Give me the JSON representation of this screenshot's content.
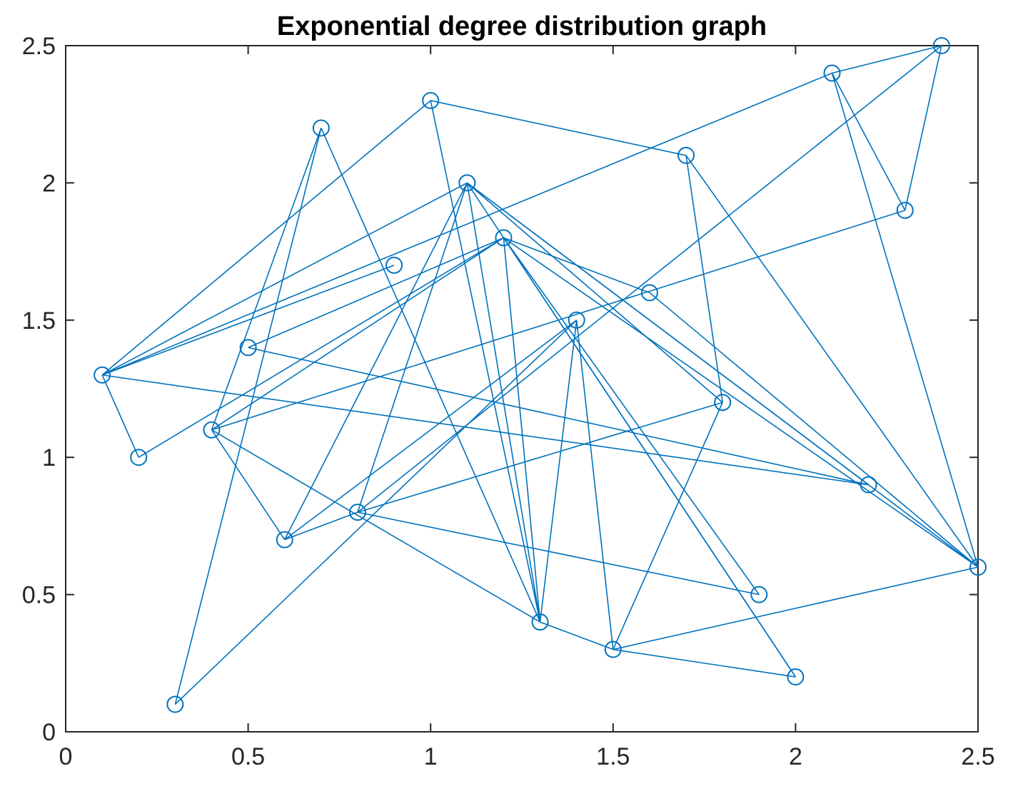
{
  "chart_data": {
    "type": "scatter",
    "title": "Exponential degree distribution graph",
    "xlabel": "",
    "ylabel": "",
    "xlim": [
      0,
      2.5
    ],
    "ylim": [
      0,
      2.5
    ],
    "xticks": [
      0,
      0.5,
      1,
      1.5,
      2,
      2.5
    ],
    "yticks": [
      0,
      0.5,
      1,
      1.5,
      2,
      2.5
    ],
    "xtick_labels": [
      "0",
      "0.5",
      "1",
      "1.5",
      "2",
      "2.5"
    ],
    "ytick_labels": [
      "0",
      "0.5",
      "1",
      "1.5",
      "2",
      "2.5"
    ],
    "grid": false,
    "color": "#0072BD",
    "nodes": [
      [
        0.1,
        1.3
      ],
      [
        0.2,
        1.0
      ],
      [
        0.3,
        0.1
      ],
      [
        0.4,
        1.1
      ],
      [
        0.5,
        1.4
      ],
      [
        0.6,
        0.7
      ],
      [
        0.7,
        2.2
      ],
      [
        0.8,
        0.8
      ],
      [
        0.9,
        1.7
      ],
      [
        1.0,
        2.3
      ],
      [
        1.1,
        2.0
      ],
      [
        1.2,
        1.8
      ],
      [
        1.3,
        0.4
      ],
      [
        1.4,
        1.5
      ],
      [
        1.5,
        0.3
      ],
      [
        1.6,
        1.6
      ],
      [
        1.7,
        2.1
      ],
      [
        1.8,
        1.2
      ],
      [
        1.9,
        0.5
      ],
      [
        2.0,
        0.2
      ],
      [
        2.1,
        2.4
      ],
      [
        2.2,
        0.9
      ],
      [
        2.3,
        1.9
      ],
      [
        2.4,
        2.5
      ],
      [
        2.5,
        0.6
      ]
    ],
    "edges": [
      [
        0,
        1
      ],
      [
        0,
        9
      ],
      [
        0,
        8
      ],
      [
        0,
        10
      ],
      [
        0,
        21
      ],
      [
        0,
        20
      ],
      [
        1,
        11
      ],
      [
        2,
        6
      ],
      [
        2,
        13
      ],
      [
        3,
        6
      ],
      [
        3,
        11
      ],
      [
        3,
        5
      ],
      [
        3,
        12
      ],
      [
        3,
        22
      ],
      [
        4,
        11
      ],
      [
        4,
        21
      ],
      [
        5,
        10
      ],
      [
        5,
        13
      ],
      [
        5,
        7
      ],
      [
        6,
        12
      ],
      [
        7,
        10
      ],
      [
        7,
        17
      ],
      [
        7,
        18
      ],
      [
        7,
        23
      ],
      [
        9,
        16
      ],
      [
        9,
        12
      ],
      [
        10,
        12
      ],
      [
        10,
        21
      ],
      [
        10,
        24
      ],
      [
        10,
        17
      ],
      [
        10,
        19
      ],
      [
        11,
        12
      ],
      [
        11,
        15
      ],
      [
        11,
        18
      ],
      [
        11,
        19
      ],
      [
        11,
        24
      ],
      [
        12,
        13
      ],
      [
        12,
        14
      ],
      [
        13,
        14
      ],
      [
        14,
        19
      ],
      [
        14,
        17
      ],
      [
        14,
        24
      ],
      [
        15,
        24
      ],
      [
        16,
        17
      ],
      [
        16,
        24
      ],
      [
        20,
        23
      ],
      [
        20,
        22
      ],
      [
        20,
        24
      ],
      [
        22,
        23
      ]
    ]
  }
}
